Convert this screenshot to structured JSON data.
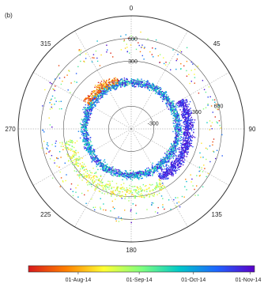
{
  "chart_data": {
    "type": "scatter",
    "projection": "polar",
    "title": "(b)",
    "angular_axis": {
      "direction": "clockwise",
      "zero_at": "top",
      "tick_labels": [
        "0",
        "45",
        "90",
        "135",
        "180",
        "225",
        "270",
        "315"
      ]
    },
    "radial_axis": {
      "range": [
        -600,
        900
      ],
      "tick_values": [
        -300,
        300,
        600
      ],
      "tick_labels": [
        "-300",
        "300",
        "600"
      ],
      "circle_values": [
        -600,
        -300,
        0,
        300,
        600,
        900
      ]
    },
    "grid": true,
    "colorbar": {
      "orientation": "horizontal",
      "placement": "bottom",
      "colors": [
        "#d7191c",
        "#ff7f00",
        "#ffff33",
        "#7fff7f",
        "#00c8c8",
        "#1e64ff",
        "#5a00c8"
      ],
      "tick_labels": [
        "01-Aug-14",
        "01-Sep-14",
        "01-Oct-14",
        "01-Nov-14"
      ],
      "tick_positions": [
        0.22,
        0.49,
        0.73,
        0.98
      ]
    },
    "point_clusters": [
      {
        "angle_range": [
          0,
          360
        ],
        "r_mean": 20,
        "r_spread": 90,
        "color_fraction": [
          0.55,
          1.0
        ],
        "count": 2200
      },
      {
        "angle_range": [
          60,
          150
        ],
        "r_mean": 160,
        "r_spread": 120,
        "color_fraction": [
          0.85,
          1.0
        ],
        "count": 900
      },
      {
        "angle_range": [
          150,
          260
        ],
        "r_mean": 250,
        "r_spread": 170,
        "color_fraction": [
          0.25,
          0.55
        ],
        "count": 450
      },
      {
        "angle_range": [
          300,
          345
        ],
        "r_mean": 80,
        "r_spread": 100,
        "color_fraction": [
          0.0,
          0.3
        ],
        "count": 220
      },
      {
        "angle_range": [
          0,
          360
        ],
        "r_mean": 500,
        "r_spread": 260,
        "color_fraction": [
          0.0,
          1.0
        ],
        "count": 320
      }
    ]
  }
}
